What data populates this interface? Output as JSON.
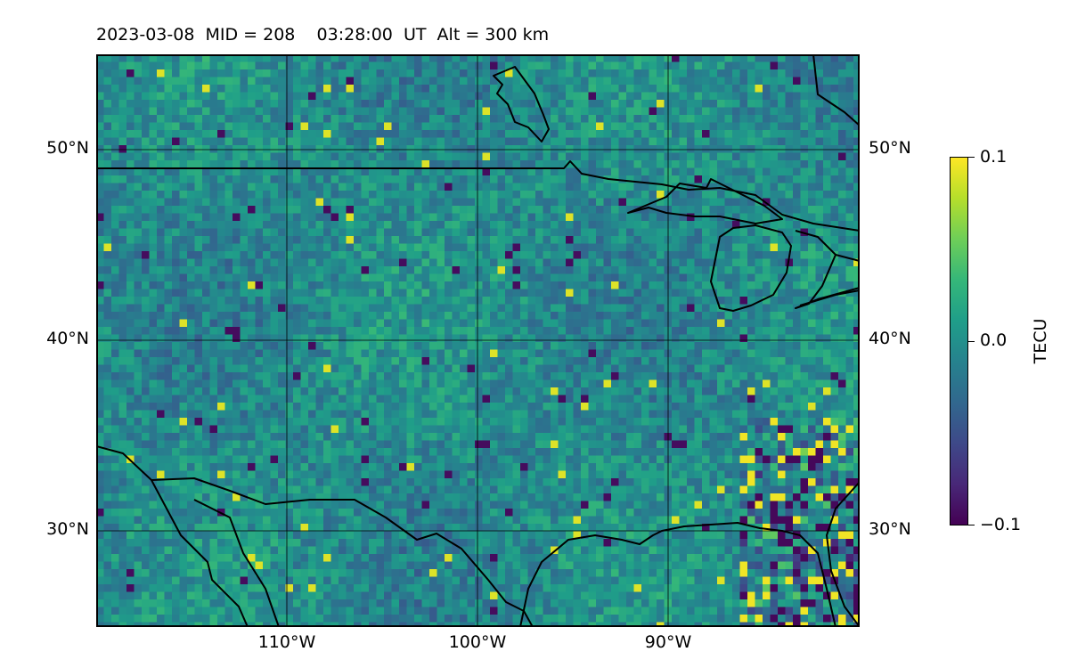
{
  "title": "2023-03-08  MID = 208    03:28:00  UT  Alt = 300 km",
  "map": {
    "lat_labels": [
      "50°N",
      "40°N",
      "30°N"
    ],
    "lon_labels": [
      "110°W",
      "100°W",
      "90°W"
    ],
    "field": "detrended TEC perturbation",
    "colormap": "viridis"
  },
  "colorbar": {
    "label": "TECU",
    "ticks": [
      "0.1",
      "0.0",
      "−0.1"
    ],
    "min": -0.1,
    "max": 0.1
  }
}
